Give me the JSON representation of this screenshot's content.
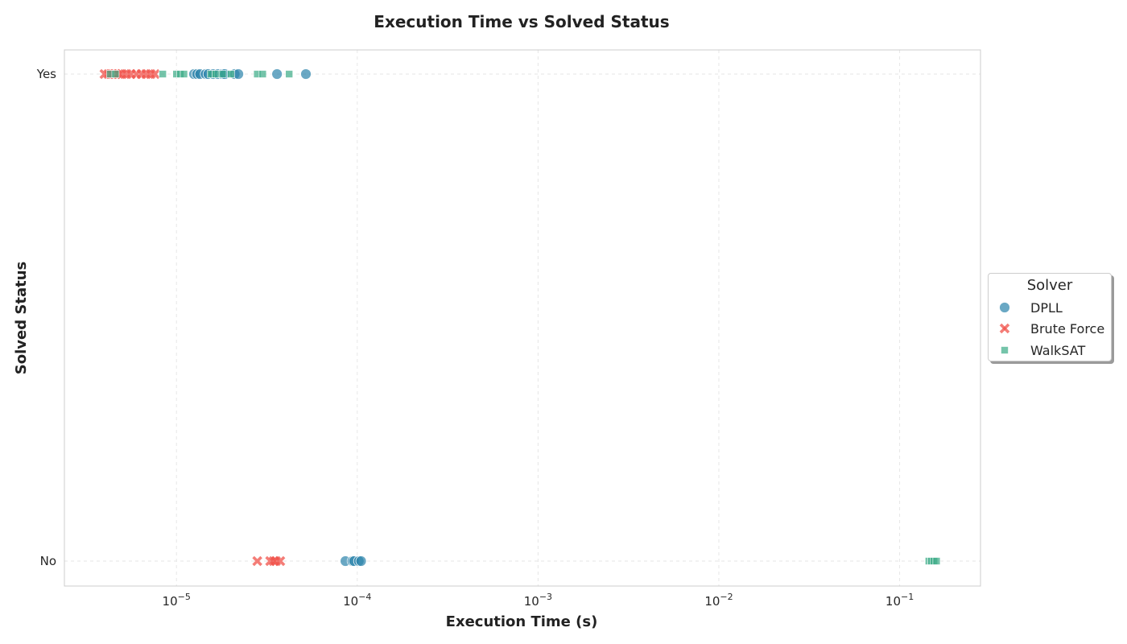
{
  "chart_data": {
    "type": "scatter",
    "title": "Execution Time vs Solved Status",
    "xlabel": "Execution Time (s)",
    "ylabel": "Solved Status",
    "x_scale": "log",
    "xlim": [
      2.4e-06,
      0.28
    ],
    "x_ticks": [
      {
        "value": 1e-05,
        "base": "10",
        "exp": "−5"
      },
      {
        "value": 0.0001,
        "base": "10",
        "exp": "−4"
      },
      {
        "value": 0.001,
        "base": "10",
        "exp": "−3"
      },
      {
        "value": 0.01,
        "base": "10",
        "exp": "−2"
      },
      {
        "value": 0.1,
        "base": "10",
        "exp": "−1"
      }
    ],
    "y_categories": [
      "No",
      "Yes"
    ],
    "grid": true,
    "legend": {
      "title": "Solver",
      "placement": "right"
    },
    "series": [
      {
        "name": "DPLL",
        "marker": "circle",
        "color": "#2b83ab",
        "points": [
          {
            "x": 1.25e-05,
            "y": "Yes"
          },
          {
            "x": 1.3e-05,
            "y": "Yes"
          },
          {
            "x": 1.35e-05,
            "y": "Yes"
          },
          {
            "x": 1.45e-05,
            "y": "Yes"
          },
          {
            "x": 1.5e-05,
            "y": "Yes"
          },
          {
            "x": 1.6e-05,
            "y": "Yes"
          },
          {
            "x": 1.7e-05,
            "y": "Yes"
          },
          {
            "x": 1.8e-05,
            "y": "Yes"
          },
          {
            "x": 1.85e-05,
            "y": "Yes"
          },
          {
            "x": 2.1e-05,
            "y": "Yes"
          },
          {
            "x": 2.2e-05,
            "y": "Yes"
          },
          {
            "x": 3.6e-05,
            "y": "Yes"
          },
          {
            "x": 5.2e-05,
            "y": "Yes"
          },
          {
            "x": 8.6e-05,
            "y": "No"
          },
          {
            "x": 9.4e-05,
            "y": "No"
          },
          {
            "x": 9.6e-05,
            "y": "No"
          },
          {
            "x": 0.000102,
            "y": "No"
          },
          {
            "x": 0.000105,
            "y": "No"
          }
        ]
      },
      {
        "name": "Brute Force",
        "marker": "x",
        "color": "#f0524a",
        "points": [
          {
            "x": 4e-06,
            "y": "Yes"
          },
          {
            "x": 4.2e-06,
            "y": "Yes"
          },
          {
            "x": 4.4e-06,
            "y": "Yes"
          },
          {
            "x": 4.6e-06,
            "y": "Yes"
          },
          {
            "x": 4.8e-06,
            "y": "Yes"
          },
          {
            "x": 5e-06,
            "y": "Yes"
          },
          {
            "x": 5.3e-06,
            "y": "Yes"
          },
          {
            "x": 5.6e-06,
            "y": "Yes"
          },
          {
            "x": 6e-06,
            "y": "Yes"
          },
          {
            "x": 6.4e-06,
            "y": "Yes"
          },
          {
            "x": 6.8e-06,
            "y": "Yes"
          },
          {
            "x": 7.2e-06,
            "y": "Yes"
          },
          {
            "x": 7.6e-06,
            "y": "Yes"
          },
          {
            "x": 2.8e-05,
            "y": "No"
          },
          {
            "x": 3.3e-05,
            "y": "No"
          },
          {
            "x": 3.45e-05,
            "y": "No"
          },
          {
            "x": 3.55e-05,
            "y": "No"
          },
          {
            "x": 3.75e-05,
            "y": "No"
          }
        ]
      },
      {
        "name": "WalkSAT",
        "marker": "square",
        "color": "#3aab86",
        "points": [
          {
            "x": 4.3e-06,
            "y": "Yes"
          },
          {
            "x": 4.6e-06,
            "y": "Yes"
          },
          {
            "x": 8.4e-06,
            "y": "Yes"
          },
          {
            "x": 1e-05,
            "y": "Yes"
          },
          {
            "x": 1.05e-05,
            "y": "Yes"
          },
          {
            "x": 1.1e-05,
            "y": "Yes"
          },
          {
            "x": 1.55e-05,
            "y": "Yes"
          },
          {
            "x": 1.65e-05,
            "y": "Yes"
          },
          {
            "x": 1.8e-05,
            "y": "Yes"
          },
          {
            "x": 2e-05,
            "y": "Yes"
          },
          {
            "x": 2.8e-05,
            "y": "Yes"
          },
          {
            "x": 3e-05,
            "y": "Yes"
          },
          {
            "x": 4.2e-05,
            "y": "Yes"
          },
          {
            "x": 0.145,
            "y": "No"
          },
          {
            "x": 0.15,
            "y": "No"
          },
          {
            "x": 0.155,
            "y": "No"
          },
          {
            "x": 0.16,
            "y": "No"
          }
        ]
      }
    ]
  }
}
